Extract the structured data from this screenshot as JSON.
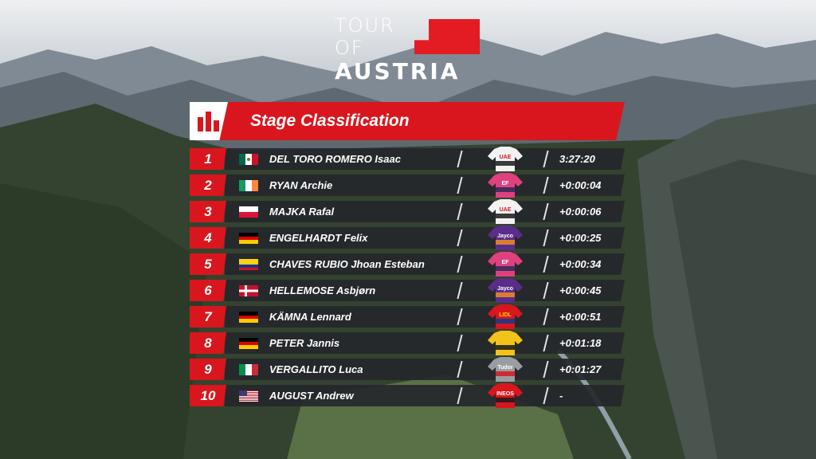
{
  "logo": {
    "line1": "TOUR",
    "line2": "OF",
    "line3": "AUSTRIA"
  },
  "header": {
    "title": "Stage Classification",
    "icon": "bar-chart-icon"
  },
  "colors": {
    "accent": "#d9161d",
    "row_bg": "#26282c"
  },
  "riders": [
    {
      "rank": "1",
      "flag": "mexico",
      "name": "DEL TORO ROMERO Isaac",
      "team_jersey": "uae-white",
      "time": "3:27:20"
    },
    {
      "rank": "2",
      "flag": "ireland",
      "name": "RYAN Archie",
      "team_jersey": "ef-pink",
      "time": "+0:00:04"
    },
    {
      "rank": "3",
      "flag": "poland",
      "name": "MAJKA Rafal",
      "team_jersey": "uae-white",
      "time": "+0:00:06"
    },
    {
      "rank": "4",
      "flag": "germany",
      "name": "ENGELHARDT Felix",
      "team_jersey": "jayco-purple",
      "time": "+0:00:25"
    },
    {
      "rank": "5",
      "flag": "colombia",
      "name": "CHAVES RUBIO Jhoan Esteban",
      "team_jersey": "ef-pink",
      "time": "+0:00:34"
    },
    {
      "rank": "6",
      "flag": "denmark",
      "name": "HELLEMOSE Asbjørn",
      "team_jersey": "jayco-purple",
      "time": "+0:00:45"
    },
    {
      "rank": "7",
      "flag": "germany",
      "name": "KÄMNA Lennard",
      "team_jersey": "lidl-trek",
      "time": "+0:00:51"
    },
    {
      "rank": "8",
      "flag": "germany",
      "name": "PETER Jannis",
      "team_jersey": "yellow",
      "time": "+0:01:18"
    },
    {
      "rank": "9",
      "flag": "italy",
      "name": "VERGALLITO Luca",
      "team_jersey": "grey",
      "time": "+0:01:27"
    },
    {
      "rank": "10",
      "flag": "usa",
      "name": "AUGUST Andrew",
      "team_jersey": "ineos",
      "time": "-"
    }
  ]
}
